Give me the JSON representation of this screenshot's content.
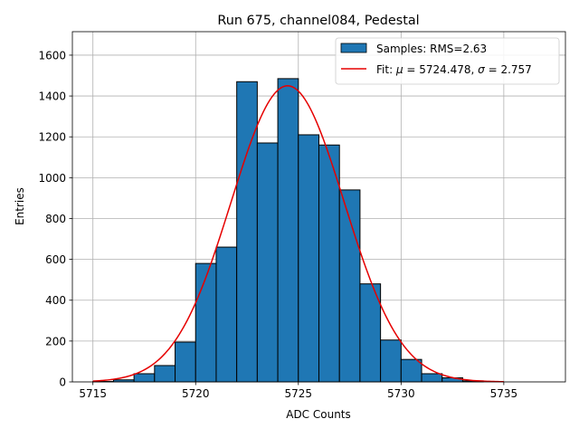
{
  "chart_data": {
    "type": "bar",
    "title": "Run 675, channel084, Pedestal",
    "xlabel": "ADC Counts",
    "ylabel": "Entries",
    "xlim": [
      5714,
      5738
    ],
    "ylim": [
      0,
      1715
    ],
    "grid": true,
    "legend_position": "top-right",
    "x_ticks": [
      5715,
      5720,
      5725,
      5730,
      5735
    ],
    "y_ticks": [
      0,
      200,
      400,
      600,
      800,
      1000,
      1200,
      1400,
      1600
    ],
    "bin_width": 1,
    "bins": [
      {
        "left": 5715,
        "count": 2
      },
      {
        "left": 5716,
        "count": 10
      },
      {
        "left": 5717,
        "count": 40
      },
      {
        "left": 5718,
        "count": 80
      },
      {
        "left": 5719,
        "count": 195
      },
      {
        "left": 5720,
        "count": 580
      },
      {
        "left": 5721,
        "count": 660
      },
      {
        "left": 5722,
        "count": 1470
      },
      {
        "left": 5723,
        "count": 1170
      },
      {
        "left": 5724,
        "count": 1485
      },
      {
        "left": 5725,
        "count": 1210
      },
      {
        "left": 5726,
        "count": 1160
      },
      {
        "left": 5727,
        "count": 940
      },
      {
        "left": 5728,
        "count": 480
      },
      {
        "left": 5729,
        "count": 205
      },
      {
        "left": 5730,
        "count": 110
      },
      {
        "left": 5731,
        "count": 40
      },
      {
        "left": 5732,
        "count": 20
      },
      {
        "left": 5733,
        "count": 5
      }
    ],
    "fit": {
      "mu": 5724.478,
      "sigma": 2.757,
      "amplitude": 1450,
      "x_range": [
        5715,
        5735
      ]
    },
    "legend": [
      {
        "label": "Samples: RMS=2.63",
        "kind": "patch",
        "color": "#1f77b4"
      },
      {
        "label_prefix": "Fit: ",
        "mu_symbol": "μ",
        "mu_text": " = 5724.478, ",
        "sigma_symbol": "σ",
        "sigma_text": " = 2.757",
        "kind": "line",
        "color": "#e60000"
      }
    ],
    "colors": {
      "bar": "#1f77b4",
      "edge": "#000000",
      "fit": "#e60000",
      "grid": "#b0b0b0"
    }
  }
}
